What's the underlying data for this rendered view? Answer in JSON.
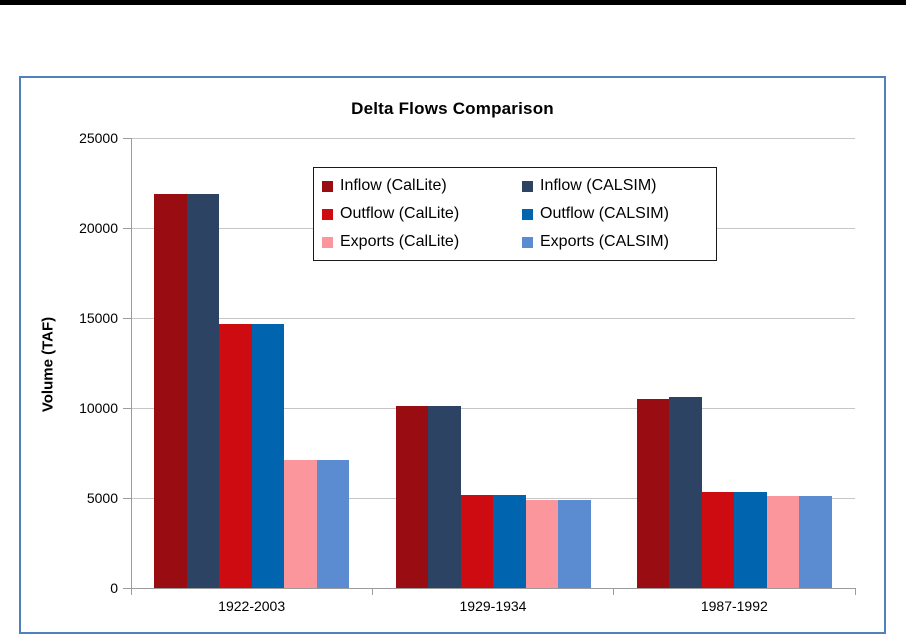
{
  "page": {
    "top_bar_color": "#000000",
    "frame_border_color": "#4F81BD",
    "background_color": "#FFFFFF"
  },
  "chart_data": {
    "type": "bar",
    "title": "Delta Flows Comparison",
    "xlabel": "",
    "ylabel": "Volume (TAF)",
    "ylim": [
      0,
      25000
    ],
    "yticks": [
      0,
      5000,
      10000,
      15000,
      20000,
      25000
    ],
    "grid": true,
    "legend_position": "inside-top-center",
    "legend_columns": 2,
    "categories": [
      "1922-2003",
      "1929-1934",
      "1987-1992"
    ],
    "series": [
      {
        "name": "Inflow (CalLite)",
        "color": "#990D12",
        "values": [
          21890,
          10110,
          10500
        ]
      },
      {
        "name": "Inflow (CALSIM)",
        "color": "#2C4363",
        "values": [
          21880,
          10110,
          10590
        ]
      },
      {
        "name": "Outflow (CalLite)",
        "color": "#CE0B10",
        "values": [
          14670,
          5140,
          5330
        ]
      },
      {
        "name": "Outflow (CALSIM)",
        "color": "#0064AF",
        "values": [
          14680,
          5150,
          5340
        ]
      },
      {
        "name": "Exports (CalLite)",
        "color": "#FB979C",
        "values": [
          7100,
          4880,
          5090
        ]
      },
      {
        "name": "Exports (CALSIM)",
        "color": "#5B8CD2",
        "values": [
          7110,
          4890,
          5120
        ]
      }
    ],
    "axis_color": "#9C9C9C",
    "gridline_color": "#C6C6C6"
  }
}
